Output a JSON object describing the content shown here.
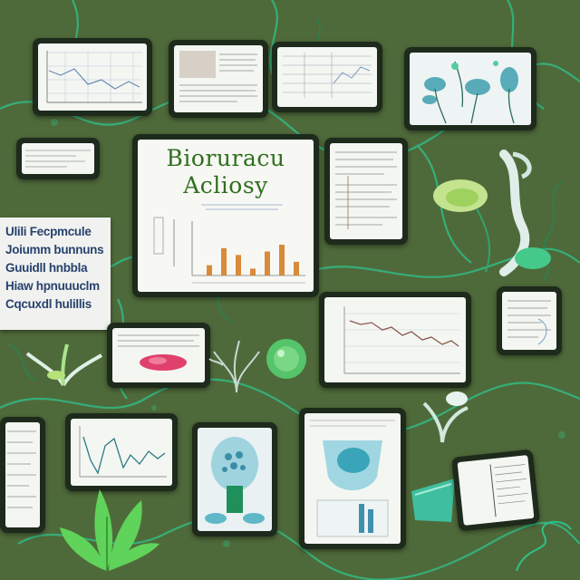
{
  "poster": {
    "title_line1": "Bioruracu",
    "title_line2": "Acliosy"
  },
  "side_panel": {
    "lines": [
      "Ulili Fecpmcule",
      "Joiumm bunnuns",
      "Guuidll hnbbla",
      "Hiaw hpnuuuclm",
      "Cqcuxdl hulillis"
    ]
  },
  "main_figure": {
    "bar_values": [
      3,
      8,
      6,
      2,
      7,
      9,
      4
    ]
  },
  "colors": {
    "background": "#4f6a3a",
    "frame": "#1d2a1c",
    "vine": "#2fbf8a",
    "title": "#2f6f1e",
    "bars": "#d98a3a",
    "leaf": "#6fd86a"
  }
}
